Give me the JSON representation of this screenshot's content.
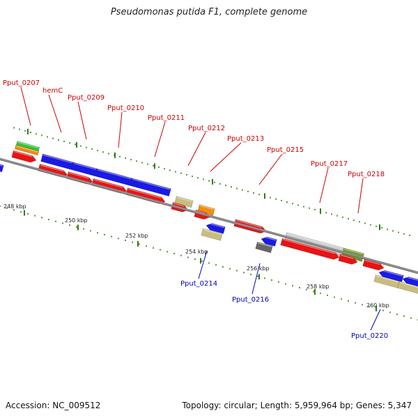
{
  "title": "Pseudomonas putida F1, complete genome",
  "footer": {
    "accession": "Accession: NC_009512",
    "summary": "Topology: circular; Length: 5,959,964 bp; Genes: 5,347"
  },
  "colors": {
    "backbone": "#8c8c8c",
    "tick": "#2e7d12",
    "forward_label": "#cc0000",
    "reverse_label": "#0000bb",
    "cds": "#e81414",
    "blue": "#1a1ae6",
    "green": "#35c435",
    "orange": "#f08c10",
    "khaki": "#c8bd80",
    "gray": "#666666",
    "silver": "#cccccc",
    "olive": "#6f9a28"
  },
  "scale_labels": [
    "248 kbp",
    "250 kbp",
    "252 kbp",
    "254 kbp",
    "256 kbp",
    "258 kbp",
    "260 kbp"
  ],
  "forward_labels": [
    "Pput_0207",
    "hemC",
    "Pput_0209",
    "Pput_0210",
    "Pput_0211",
    "Pput_0212",
    "Pput_0213",
    "Pput_0215",
    "Pput_0217",
    "Pput_0218"
  ],
  "reverse_labels": [
    "Pput_0214",
    "Pput_0216",
    "Pput_0220"
  ]
}
